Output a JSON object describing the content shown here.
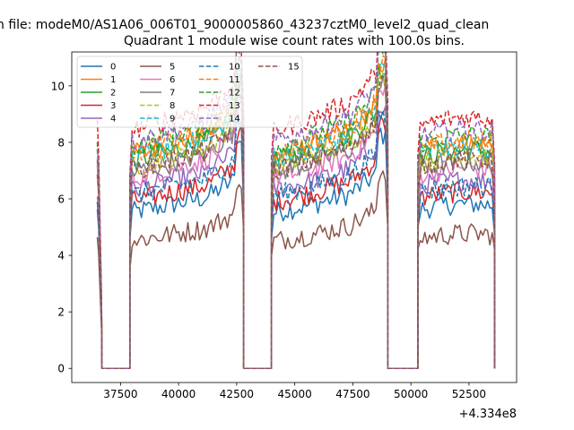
{
  "figure": {
    "suptitle": "n file: modeM0/AS1A06_006T01_9000005860_43237cztM0_level2_quad_clean",
    "title": "Quadrant 1 module wise count rates with 100.0s bins.",
    "offset_label": "+4.334e8"
  },
  "chart_data": {
    "type": "line",
    "title": "Quadrant 1 module wise count rates with 100.0s bins.",
    "xlabel": "",
    "ylabel": "",
    "x_offset": 433400000,
    "xlim": [
      35400,
      54550
    ],
    "ylim": [
      -0.5,
      11.2
    ],
    "xticks": [
      37500,
      40000,
      42500,
      45000,
      47500,
      50000,
      52500
    ],
    "yticks": [
      0,
      2,
      4,
      6,
      8,
      10
    ],
    "grid": false,
    "legend_position": "top-left",
    "legend_columns": 4,
    "segments": [
      {
        "start": 36500,
        "end": 36700,
        "kind": "taper"
      },
      {
        "start": 36700,
        "end": 37900,
        "kind": "gap"
      },
      {
        "start": 37900,
        "end": 42800,
        "kind": "data",
        "trend": [
          0.0,
          0.05,
          0.1,
          0.25
        ],
        "peak_at": 42600
      },
      {
        "start": 42800,
        "end": 44000,
        "kind": "gap"
      },
      {
        "start": 44000,
        "end": 49000,
        "kind": "data",
        "trend": [
          0.0,
          0.05,
          0.12,
          0.3
        ],
        "peak_at": 48750
      },
      {
        "start": 49000,
        "end": 50300,
        "kind": "gap"
      },
      {
        "start": 50300,
        "end": 53600,
        "kind": "data",
        "trend": [
          0.02,
          0.05,
          0.06,
          0.05
        ],
        "peak_at": null
      }
    ],
    "series": [
      {
        "name": "0",
        "color": "#1f77b4",
        "dash": false,
        "level": 5.5
      },
      {
        "name": "1",
        "color": "#ff7f0e",
        "dash": false,
        "level": 7.5
      },
      {
        "name": "2",
        "color": "#2ca02c",
        "dash": false,
        "level": 7.3
      },
      {
        "name": "3",
        "color": "#d62728",
        "dash": false,
        "level": 5.9
      },
      {
        "name": "4",
        "color": "#9467bd",
        "dash": false,
        "level": 6.3
      },
      {
        "name": "5",
        "color": "#8c564b",
        "dash": false,
        "level": 4.5
      },
      {
        "name": "6",
        "color": "#e377c2",
        "dash": false,
        "level": 6.7
      },
      {
        "name": "7",
        "color": "#7f7f7f",
        "dash": false,
        "level": 6.9
      },
      {
        "name": "8",
        "color": "#bcbd22",
        "dash": true,
        "level": 7.1
      },
      {
        "name": "9",
        "color": "#17becf",
        "dash": true,
        "level": 7.4
      },
      {
        "name": "10",
        "color": "#1f77b4",
        "dash": true,
        "level": 6.1
      },
      {
        "name": "11",
        "color": "#ff7f0e",
        "dash": true,
        "level": 7.6
      },
      {
        "name": "12",
        "color": "#2ca02c",
        "dash": true,
        "level": 7.8
      },
      {
        "name": "13",
        "color": "#d62728",
        "dash": true,
        "level": 8.4
      },
      {
        "name": "14",
        "color": "#9467bd",
        "dash": true,
        "level": 8.0
      },
      {
        "name": "15",
        "color": "#8c564b",
        "dash": true,
        "level": 7.0
      }
    ]
  }
}
